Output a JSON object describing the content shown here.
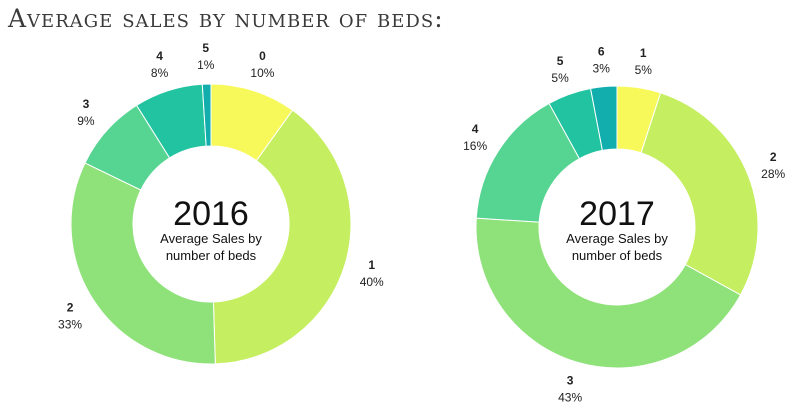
{
  "title": "Average sales by number of beds:",
  "chart_data": [
    {
      "type": "pie",
      "year": "2016",
      "subtitle_line1": "Average Sales by",
      "subtitle_line2": "number of beds",
      "slices": [
        {
          "name": "0",
          "value": 10,
          "label": "10%",
          "color": "#f7f95a"
        },
        {
          "name": "1",
          "value": 40,
          "label": "40%",
          "color": "#c5ee60"
        },
        {
          "name": "2",
          "value": 33,
          "label": "33%",
          "color": "#8fe27a"
        },
        {
          "name": "3",
          "value": 9,
          "label": "9%",
          "color": "#55d492"
        },
        {
          "name": "4",
          "value": 8,
          "label": "8%",
          "color": "#22c3a0"
        },
        {
          "name": "5",
          "value": 1,
          "label": "1%",
          "color": "#12aeae"
        }
      ]
    },
    {
      "type": "pie",
      "year": "2017",
      "subtitle_line1": "Average Sales by",
      "subtitle_line2": "number of beds",
      "slices": [
        {
          "name": "1",
          "value": 5,
          "label": "5%",
          "color": "#f7f95a"
        },
        {
          "name": "2",
          "value": 28,
          "label": "28%",
          "color": "#c5ee60"
        },
        {
          "name": "3",
          "value": 43,
          "label": "43%",
          "color": "#8fe27a"
        },
        {
          "name": "4",
          "value": 16,
          "label": "16%",
          "color": "#55d492"
        },
        {
          "name": "5",
          "value": 5,
          "label": "5%",
          "color": "#22c3a0"
        },
        {
          "name": "6",
          "value": 3,
          "label": "3%",
          "color": "#12aeae"
        }
      ]
    }
  ]
}
